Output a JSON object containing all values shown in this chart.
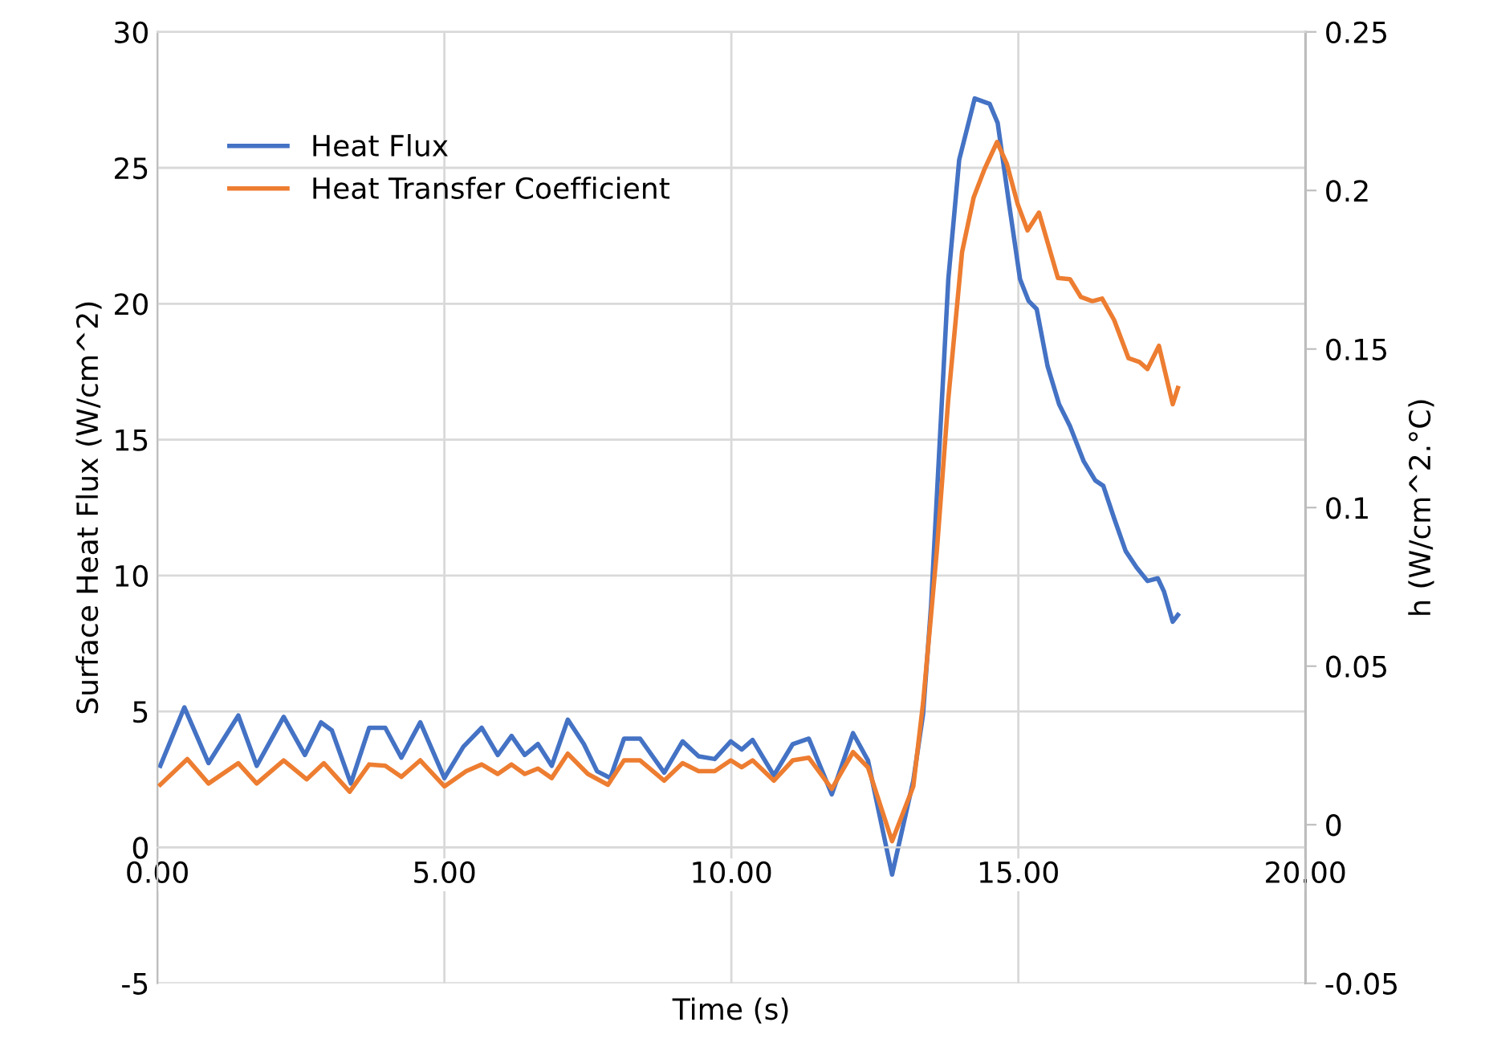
{
  "chart_data": {
    "type": "line",
    "xlabel": "Time (s)",
    "ylabel": "Surface Heat Flux (W/cm^2)",
    "y2label": "h (W/cm^2.°C)",
    "xlim": [
      0,
      20
    ],
    "xticks": [
      {
        "value": 0,
        "label": "0.00"
      },
      {
        "value": 5,
        "label": "5.00"
      },
      {
        "value": 10,
        "label": "10.00"
      },
      {
        "value": 15,
        "label": "15.00"
      },
      {
        "value": 20,
        "label": "20.00"
      }
    ],
    "ylim": [
      -5,
      30
    ],
    "yticks": [
      -5,
      0,
      5,
      10,
      15,
      20,
      25,
      30
    ],
    "y2lim": [
      -0.05,
      0.25
    ],
    "y2ticks": [
      -0.05,
      0,
      0.05,
      0.1,
      0.15,
      0.2,
      0.25
    ],
    "grid": true,
    "legend": "top left",
    "marker": "none",
    "line_style": "solid",
    "series": [
      {
        "name": "Heat Flux",
        "color": "#4472c4",
        "x": [
          0.05,
          0.47,
          0.89,
          1.41,
          1.73,
          2.2,
          2.57,
          2.85,
          3.04,
          3.37,
          3.69,
          3.97,
          4.25,
          4.58,
          5.0,
          5.33,
          5.65,
          5.93,
          6.17,
          6.4,
          6.63,
          6.87,
          7.15,
          7.43,
          7.66,
          7.89,
          8.13,
          8.41,
          8.83,
          9.15,
          9.43,
          9.71,
          9.99,
          10.18,
          10.37,
          10.74,
          11.07,
          11.35,
          11.75,
          12.12,
          12.38,
          12.8,
          13.17,
          13.34,
          13.48,
          13.63,
          13.78,
          13.97,
          14.24,
          14.5,
          14.64,
          14.84,
          15.03,
          15.18,
          15.32,
          15.51,
          15.71,
          15.9,
          16.14,
          16.34,
          16.48,
          16.67,
          16.87,
          17.06,
          17.25,
          17.43,
          17.54,
          17.69,
          17.78
        ],
        "values": [
          3.0,
          5.15,
          3.1,
          4.85,
          3.0,
          4.8,
          3.4,
          4.6,
          4.3,
          2.35,
          4.4,
          4.4,
          3.3,
          4.6,
          2.55,
          3.7,
          4.4,
          3.4,
          4.1,
          3.4,
          3.8,
          3.0,
          4.7,
          3.8,
          2.8,
          2.55,
          4.0,
          4.0,
          2.75,
          3.9,
          3.35,
          3.25,
          3.9,
          3.6,
          3.95,
          2.65,
          3.8,
          4.0,
          1.95,
          4.2,
          3.2,
          -1.0,
          2.45,
          4.9,
          8.9,
          14.9,
          20.9,
          25.3,
          27.55,
          27.35,
          26.65,
          23.65,
          20.9,
          20.1,
          19.8,
          17.7,
          16.3,
          15.5,
          14.2,
          13.5,
          13.3,
          12.1,
          10.9,
          10.3,
          9.8,
          9.9,
          9.4,
          8.3,
          8.55
        ]
      },
      {
        "name": "Heat Transfer Coefficient",
        "color": "#ed7d31",
        "axis": "y2",
        "x": [
          0.05,
          0.52,
          0.89,
          1.41,
          1.73,
          2.2,
          2.6,
          2.9,
          3.35,
          3.69,
          3.97,
          4.25,
          4.58,
          5.0,
          5.38,
          5.65,
          5.93,
          6.17,
          6.4,
          6.63,
          6.87,
          7.15,
          7.5,
          7.85,
          8.13,
          8.41,
          8.83,
          9.15,
          9.43,
          9.71,
          9.99,
          10.18,
          10.37,
          10.74,
          11.07,
          11.35,
          11.75,
          12.12,
          12.38,
          12.8,
          13.17,
          13.34,
          13.58,
          13.78,
          14.02,
          14.22,
          14.41,
          14.63,
          14.8,
          14.99,
          15.16,
          15.36,
          15.51,
          15.69,
          15.9,
          16.09,
          16.29,
          16.46,
          16.67,
          16.92,
          17.11,
          17.25,
          17.45,
          17.69,
          17.78
        ],
        "values": [
          0.0126,
          0.0207,
          0.013,
          0.0194,
          0.013,
          0.0203,
          0.0143,
          0.0194,
          0.0104,
          0.019,
          0.0186,
          0.0151,
          0.0203,
          0.0121,
          0.0169,
          0.019,
          0.016,
          0.019,
          0.016,
          0.0177,
          0.0147,
          0.0224,
          0.016,
          0.0126,
          0.0203,
          0.0203,
          0.0139,
          0.0194,
          0.0169,
          0.0169,
          0.0203,
          0.0181,
          0.0203,
          0.0139,
          0.0203,
          0.0211,
          0.0113,
          0.0229,
          0.0181,
          -0.0052,
          0.0121,
          0.0383,
          0.0863,
          0.1343,
          0.1806,
          0.1977,
          0.2067,
          0.2153,
          0.2084,
          0.1956,
          0.1874,
          0.193,
          0.1836,
          0.1724,
          0.172,
          0.1664,
          0.1651,
          0.1659,
          0.1591,
          0.1471,
          0.1459,
          0.1437,
          0.151,
          0.1326,
          0.1377
        ]
      }
    ]
  }
}
